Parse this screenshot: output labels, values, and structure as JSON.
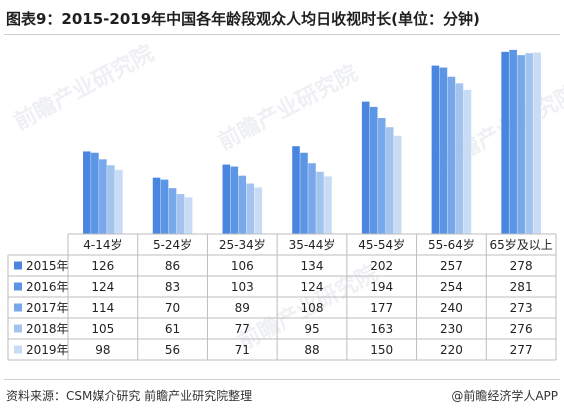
{
  "title": "图表9：2015-2019年中国各年龄段观众人均日收视时长(单位：分钟)",
  "source": "资料来源：CSM媒介研究  前瞻产业研究院整理",
  "credit": "@前瞻经济学人APP",
  "watermark": "前瞻产业研究院",
  "chart_data": {
    "type": "bar",
    "title": "图表9：2015-2019年中国各年龄段观众人均日收视时长(单位：分钟)",
    "unit": "分钟",
    "categories": [
      "4-14岁",
      "5-24岁",
      "25-34岁",
      "35-44岁",
      "45-54岁",
      "55-64岁",
      "65岁及以上"
    ],
    "series": [
      {
        "name": "2015年",
        "color": "#4a86e0",
        "values": [
          126,
          86,
          106,
          134,
          202,
          257,
          278
        ]
      },
      {
        "name": "2016年",
        "color": "#5b95e6",
        "values": [
          124,
          83,
          103,
          124,
          194,
          254,
          281
        ]
      },
      {
        "name": "2017年",
        "color": "#79a8ea",
        "values": [
          114,
          70,
          89,
          108,
          177,
          240,
          273
        ]
      },
      {
        "name": "2018年",
        "color": "#a4c4f0",
        "values": [
          105,
          61,
          77,
          95,
          163,
          230,
          276
        ]
      },
      {
        "name": "2019年",
        "color": "#c9dcf6",
        "values": [
          98,
          56,
          71,
          88,
          150,
          220,
          277
        ]
      }
    ],
    "ylim": [
      0,
      290
    ],
    "axis_visible": false,
    "data_table": true
  }
}
